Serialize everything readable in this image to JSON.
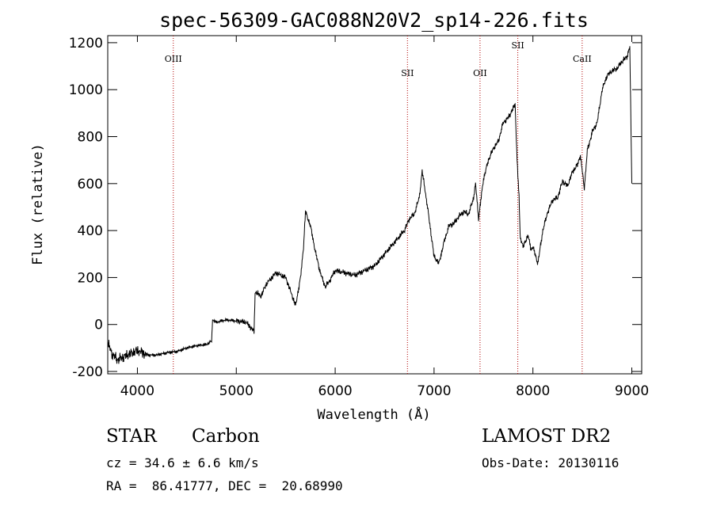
{
  "chart_data": {
    "type": "line",
    "title": "spec-56309-GAC088N20V2_sp14-226.fits",
    "xlabel": "Wavelength (Å)",
    "ylabel": "Flux (relative)",
    "xlim": [
      3700,
      9100
    ],
    "ylim": [
      -210,
      1230
    ],
    "xticks": [
      4000,
      5000,
      6000,
      7000,
      8000,
      9000
    ],
    "yticks": [
      -200,
      0,
      200,
      400,
      600,
      800,
      1000,
      1200
    ],
    "grid": false,
    "series": [
      {
        "x": [
          3700,
          3750,
          3800,
          3850,
          3900,
          3950,
          4000,
          4100,
          4200,
          4300,
          4400,
          4500,
          4600,
          4700,
          4750,
          4760,
          4800,
          4900,
          5000,
          5100,
          5180,
          5190,
          5250,
          5300,
          5400,
          5500,
          5600,
          5650,
          5680,
          5700,
          5750,
          5800,
          5850,
          5900,
          5950,
          6000,
          6100,
          6200,
          6300,
          6400,
          6500,
          6600,
          6700,
          6750,
          6800,
          6850,
          6880,
          6900,
          6950,
          7000,
          7050,
          7100,
          7150,
          7200,
          7250,
          7300,
          7350,
          7400,
          7420,
          7450,
          7500,
          7550,
          7600,
          7650,
          7700,
          7750,
          7800,
          7820,
          7840,
          7860,
          7870,
          7900,
          7950,
          7980,
          8000,
          8050,
          8100,
          8150,
          8200,
          8250,
          8300,
          8350,
          8400,
          8450,
          8480,
          8500,
          8520,
          8550,
          8600,
          8650,
          8700,
          8750,
          8800,
          8850,
          8900,
          8950,
          8980,
          9000
        ],
        "y": [
          -80,
          -130,
          -150,
          -140,
          -130,
          -120,
          -110,
          -130,
          -130,
          -120,
          -115,
          -100,
          -90,
          -85,
          -70,
          20,
          10,
          20,
          15,
          10,
          -30,
          140,
          120,
          170,
          220,
          200,
          80,
          200,
          330,
          480,
          420,
          310,
          220,
          160,
          190,
          230,
          220,
          210,
          230,
          250,
          300,
          350,
          400,
          450,
          470,
          540,
          650,
          600,
          450,
          290,
          260,
          350,
          420,
          430,
          460,
          480,
          470,
          540,
          600,
          450,
          620,
          700,
          750,
          780,
          860,
          880,
          920,
          940,
          700,
          540,
          380,
          330,
          380,
          320,
          330,
          260,
          400,
          480,
          530,
          540,
          610,
          590,
          650,
          680,
          720,
          650,
          580,
          740,
          820,
          860,
          1000,
          1060,
          1080,
          1090,
          1120,
          1140,
          1180,
          600
        ]
      }
    ],
    "line_markers": [
      {
        "label": "OIII",
        "x": 4363
      },
      {
        "label": "SII",
        "x": 6731
      },
      {
        "label": "OII",
        "x": 7465
      },
      {
        "label": "SII",
        "x": 7847
      },
      {
        "label": "CaII",
        "x": 8498
      }
    ]
  },
  "info": {
    "object_class": "STAR",
    "subclass": "Carbon",
    "cz": "cz = 34.6 ± 6.6 km/s",
    "coords": "RA =  86.41777, DEC =  20.68990",
    "survey": "LAMOST DR2",
    "obs_date": "Obs-Date: 20130116"
  }
}
